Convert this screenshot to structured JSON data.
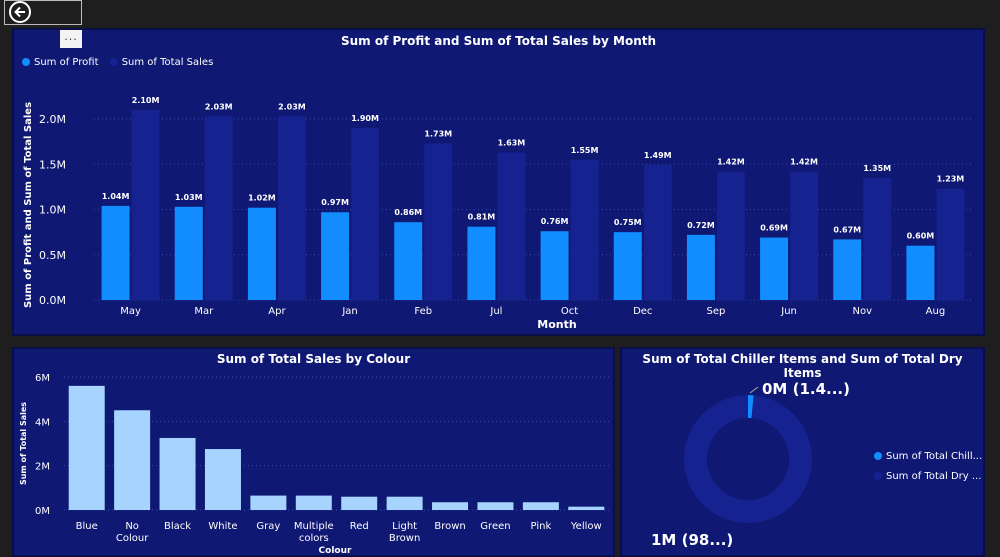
{
  "nav": {
    "back_icon": "back-arrow-icon",
    "more_options": "..."
  },
  "chart1": {
    "title": "Sum of Profit and Sum of Total Sales by Month",
    "legend": [
      "Sum of Profit",
      "Sum of Total Sales"
    ],
    "colors": {
      "profit": "#118dff",
      "sales": "#15228f"
    }
  },
  "chart2": {
    "title": "Sum of Total Sales by Colour",
    "color": "#a6d4ff"
  },
  "chart3": {
    "title": "Sum of Total Chiller Items and Sum of Total Dry Items",
    "legend": [
      "Sum of Total Chill...",
      "Sum of Total Dry ..."
    ],
    "colors": {
      "chiller": "#118dff",
      "dry": "#15228f"
    }
  },
  "chart_data": [
    {
      "type": "bar",
      "title": "Sum of Profit and Sum of Total Sales by Month",
      "xlabel": "Month",
      "ylabel": "Sum of Profit and Sum of Total Sales",
      "ylim": [
        0,
        2.1
      ],
      "yticks": [
        "0.0M",
        "0.5M",
        "1.0M",
        "1.5M",
        "2.0M"
      ],
      "grid": true,
      "legend_position": "top-left",
      "categories": [
        "May",
        "Mar",
        "Apr",
        "Jan",
        "Feb",
        "Jul",
        "Oct",
        "Dec",
        "Sep",
        "Jun",
        "Nov",
        "Aug"
      ],
      "series": [
        {
          "name": "Sum of Profit",
          "values": [
            1.04,
            1.03,
            1.02,
            0.97,
            0.86,
            0.81,
            0.76,
            0.75,
            0.72,
            0.69,
            0.67,
            0.6
          ],
          "labels": [
            "1.04M",
            "1.03M",
            "1.02M",
            "0.97M",
            "0.86M",
            "0.81M",
            "0.76M",
            "0.75M",
            "0.72M",
            "0.69M",
            "0.67M",
            "0.60M"
          ]
        },
        {
          "name": "Sum of Total Sales",
          "values": [
            2.1,
            2.03,
            2.03,
            1.9,
            1.73,
            1.63,
            1.55,
            1.49,
            1.42,
            1.42,
            1.35,
            1.23
          ],
          "labels": [
            "2.10M",
            "2.03M",
            "2.03M",
            "1.90M",
            "1.73M",
            "1.63M",
            "1.55M",
            "1.49M",
            "1.42M",
            "1.42M",
            "1.35M",
            "1.23M"
          ]
        }
      ]
    },
    {
      "type": "bar",
      "title": "Sum of Total Sales by Colour",
      "xlabel": "Colour",
      "ylabel": "Sum of Total Sales",
      "ylim": [
        0,
        6
      ],
      "yticks": [
        "0M",
        "2M",
        "4M",
        "6M"
      ],
      "grid": true,
      "categories": [
        "Blue",
        "No Colour",
        "Black",
        "White",
        "Gray",
        "Multiple colors",
        "Red",
        "Light Brown",
        "Brown",
        "Green",
        "Pink",
        "Yellow"
      ],
      "values": [
        5.6,
        4.5,
        3.25,
        2.75,
        0.65,
        0.65,
        0.6,
        0.6,
        0.35,
        0.35,
        0.35,
        0.15
      ]
    },
    {
      "type": "pie",
      "title": "Sum of Total Chiller Items and Sum of Total Dry Items",
      "donut": true,
      "legend_position": "right",
      "slices": [
        {
          "name": "Sum of Total Chill...",
          "value": 1.4,
          "label": "0M (1.4...)"
        },
        {
          "name": "Sum of Total Dry ...",
          "value": 98.6,
          "label": "1M (98...)"
        }
      ]
    }
  ]
}
